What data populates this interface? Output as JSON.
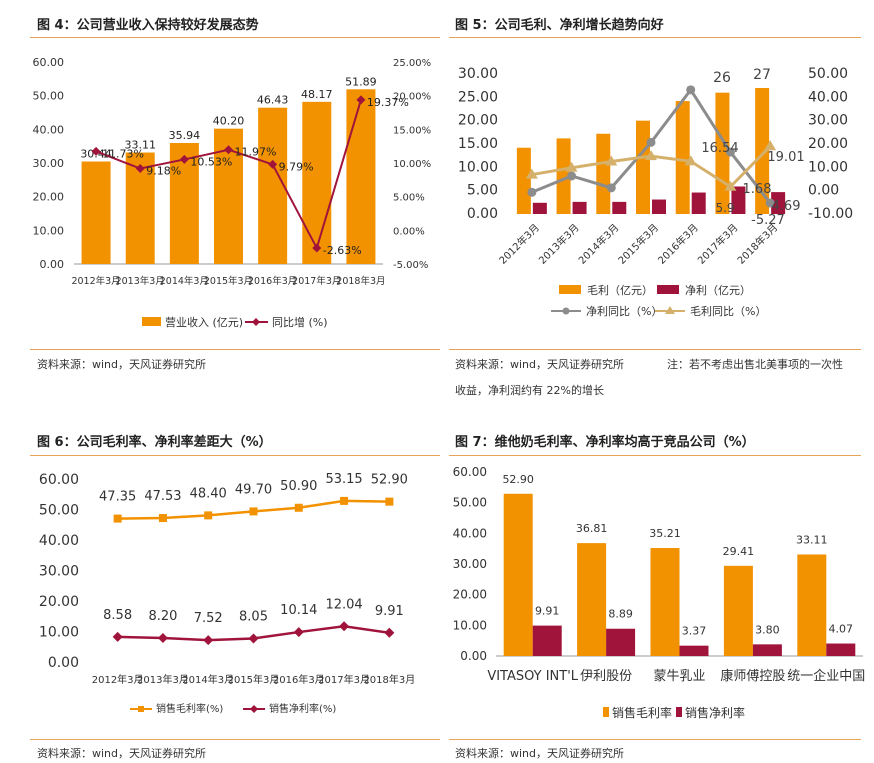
{
  "panels": {
    "p4": {
      "title": "图 4：公司营业收入保持较好发展态势",
      "source": "资料来源：wind，天风证券研究所"
    },
    "p5": {
      "title": "图 5：公司毛利、净利增长趋势向好",
      "source": "资料来源：wind，天风证券研究所",
      "note1": "注：若不考虑出售北美事项的一次性",
      "note2": "收益，净利润约有 22%的增长"
    },
    "p6": {
      "title": "图 6：公司毛利率、净利率差距大（%）",
      "source": "资料来源：wind，天风证券研究所"
    },
    "p7": {
      "title": "图 7：维他奶毛利率、净利率均高于竞品公司（%）",
      "source": "资料来源：wind，天风证券研究所"
    }
  },
  "chart_data": [
    {
      "type": "bar",
      "categories": [
        "2012年3月",
        "2013年3月",
        "2014年3月",
        "2015年3月",
        "2016年3月",
        "2017年3月",
        "2018年3月"
      ],
      "series": [
        {
          "name": "营业收入 (亿元)",
          "kind": "bar",
          "axis": "left",
          "values": [
            30.44,
            33.11,
            35.94,
            40.2,
            46.43,
            48.17,
            51.89
          ],
          "labels": [
            "30.44",
            "33.11",
            "35.94",
            "40.20",
            "46.43",
            "48.17",
            "51.89"
          ],
          "color": "#f39200"
        },
        {
          "name": "同比增 (%)",
          "kind": "line",
          "axis": "right",
          "values": [
            11.73,
            9.18,
            10.53,
            11.97,
            9.79,
            -2.63,
            19.37
          ],
          "labels": [
            "11.73%",
            "9.18%",
            "10.53%",
            "11.97%",
            "9.79%",
            "-2.63%",
            "19.37%"
          ],
          "color": "#a0143c"
        }
      ],
      "ylim": [
        0,
        60
      ],
      "yticks": [
        "0.00",
        "10.00",
        "20.00",
        "30.00",
        "40.00",
        "50.00",
        "60.00"
      ],
      "y2lim": [
        -5,
        25
      ],
      "y2ticks": [
        "-5.00%",
        "0.00%",
        "5.00%",
        "10.00%",
        "15.00%",
        "20.00%",
        "25.00%"
      ],
      "legend": "bottom"
    },
    {
      "type": "bar",
      "categories": [
        "2012年3月",
        "2013年3月",
        "2014年3月",
        "2015年3月",
        "2016年3月",
        "2017年3月",
        "2018年3月"
      ],
      "series": [
        {
          "name": "毛利（亿元）",
          "kind": "bar",
          "axis": "left",
          "values": [
            14.2,
            16.2,
            17.2,
            20.0,
            24.2,
            26,
            27
          ],
          "color": "#f39200"
        },
        {
          "name": "净利（亿元）",
          "kind": "bar",
          "axis": "left",
          "values": [
            2.4,
            2.6,
            2.6,
            3.1,
            4.6,
            5.9,
            4.69
          ],
          "color": "#a0143c"
        },
        {
          "name": "净利同比（%）",
          "kind": "line",
          "axis": "right",
          "values": [
            -0.7,
            6.3,
            1.2,
            20.7,
            43.2,
            16.54,
            -5.27
          ],
          "color": "#8c8c8c"
        },
        {
          "name": "毛利同比（%）",
          "kind": "line",
          "axis": "right",
          "values": [
            6.9,
            9.8,
            12.5,
            14.8,
            12.6,
            1.68,
            19.01
          ],
          "color": "#d4b06a"
        }
      ],
      "annotations": [
        "26",
        "27",
        "16.54",
        "19.01",
        "1.68",
        "4.69",
        "5.9",
        "-5.27"
      ],
      "ylim": [
        0,
        30
      ],
      "yticks": [
        "0.00",
        "5.00",
        "10.00",
        "15.00",
        "20.00",
        "25.00",
        "30.00"
      ],
      "y2lim": [
        -10,
        50
      ],
      "y2ticks": [
        "-10.00",
        "0.00",
        "10.00",
        "20.00",
        "30.00",
        "40.00",
        "50.00"
      ],
      "legend": "bottom"
    },
    {
      "type": "line",
      "categories": [
        "2012年3月",
        "2013年3月",
        "2014年3月",
        "2015年3月",
        "2016年3月",
        "2017年3月",
        "2018年3月"
      ],
      "series": [
        {
          "name": "销售毛利率(%)",
          "values": [
            47.35,
            47.53,
            48.4,
            49.7,
            50.9,
            53.15,
            52.9
          ],
          "labels": [
            "47.35",
            "47.53",
            "48.40",
            "49.70",
            "50.90",
            "53.15",
            "52.90"
          ],
          "color": "#f39200"
        },
        {
          "name": "销售净利率(%)",
          "values": [
            8.58,
            8.2,
            7.52,
            8.05,
            10.14,
            12.04,
            9.91
          ],
          "labels": [
            "8.58",
            "8.20",
            "7.52",
            "8.05",
            "10.14",
            "12.04",
            "9.91"
          ],
          "color": "#a0143c"
        }
      ],
      "ylim": [
        0,
        60
      ],
      "yticks": [
        "0.00",
        "10.00",
        "20.00",
        "30.00",
        "40.00",
        "50.00",
        "60.00"
      ],
      "legend": "bottom"
    },
    {
      "type": "bar",
      "categories": [
        "VITASOY INT'L",
        "伊利股份",
        "蒙牛乳业",
        "康师傅控股",
        "统一企业中国"
      ],
      "series": [
        {
          "name": "销售毛利率",
          "values": [
            52.9,
            36.81,
            35.21,
            29.41,
            33.11
          ],
          "labels": [
            "52.90",
            "36.81",
            "35.21",
            "29.41",
            "33.11"
          ],
          "color": "#f39200"
        },
        {
          "name": "销售净利率",
          "values": [
            9.91,
            8.89,
            3.37,
            3.8,
            4.07
          ],
          "labels": [
            "9.91",
            "8.89",
            "3.37",
            "3.80",
            "4.07"
          ],
          "color": "#a0143c"
        }
      ],
      "ylim": [
        0,
        60
      ],
      "yticks": [
        "0.00",
        "10.00",
        "20.00",
        "30.00",
        "40.00",
        "50.00",
        "60.00"
      ],
      "legend": "bottom"
    }
  ]
}
